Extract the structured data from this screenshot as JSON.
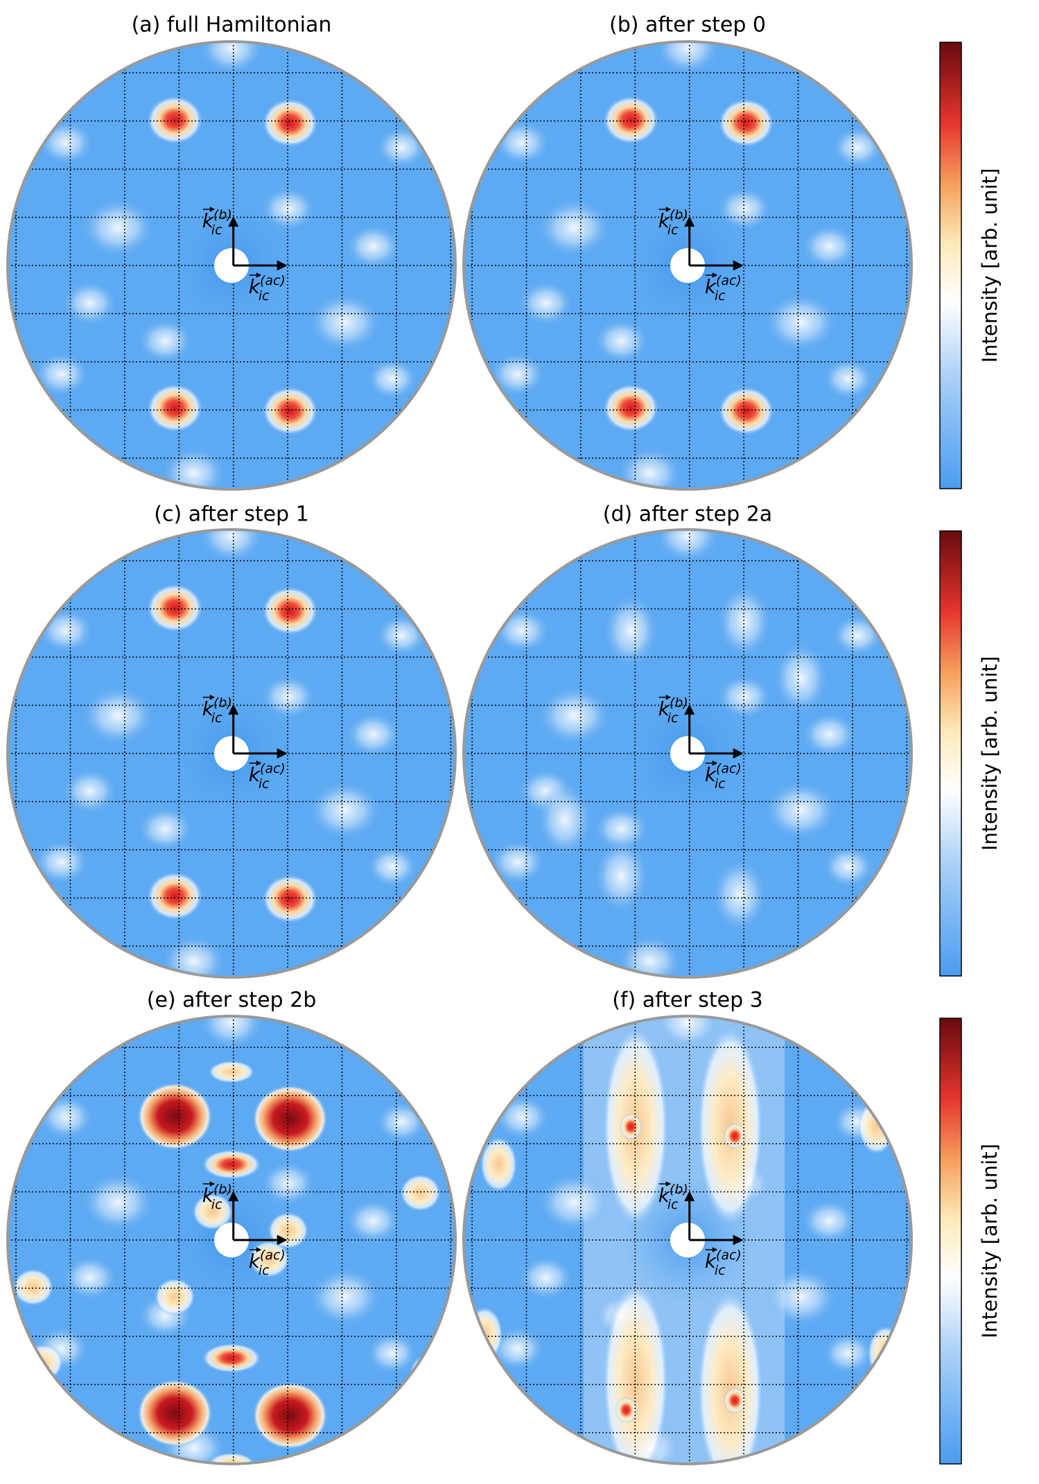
{
  "panels": [
    {
      "title": "(a) full Hamiltonian"
    },
    {
      "title": "(b) after step 0"
    },
    {
      "title": "(c) after step 1"
    },
    {
      "title": "(d) after step 2a"
    },
    {
      "title": "(e) after step 2b"
    },
    {
      "title": "(f) after step 3"
    }
  ],
  "axis_labels": {
    "vertical": {
      "symbol": "k",
      "subscript": "ic",
      "superscript": "(b)"
    },
    "horizontal": {
      "symbol": "k",
      "subscript": "ic",
      "superscript": "(ac)"
    }
  },
  "colorbar": {
    "label": "Intensity [arb. unit]"
  }
}
